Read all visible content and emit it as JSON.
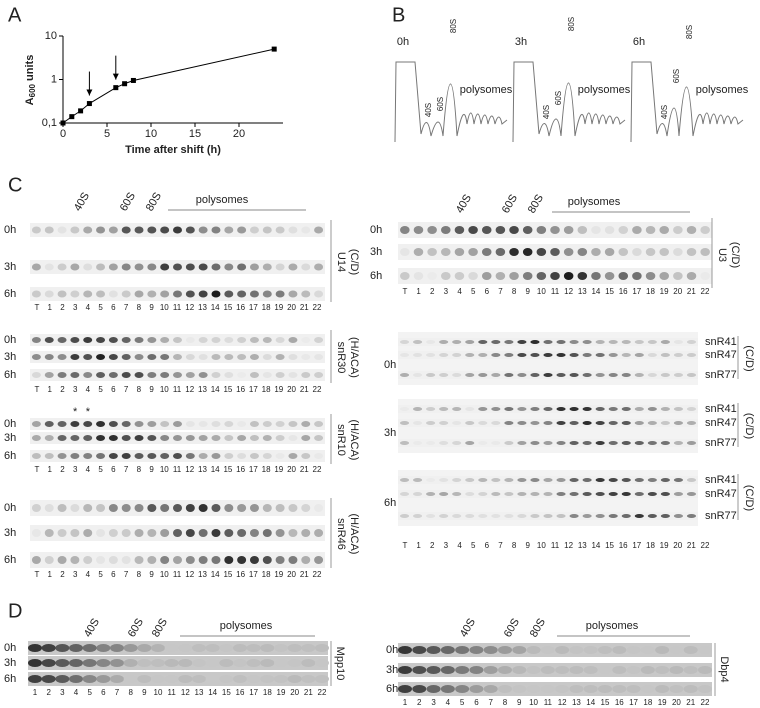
{
  "chart_data": {
    "type": "line",
    "panel_label": "A",
    "x": [
      0,
      1,
      2,
      3,
      6,
      7,
      8,
      24
    ],
    "values": [
      0.1,
      0.14,
      0.19,
      0.28,
      0.65,
      0.8,
      0.95,
      5
    ],
    "xlim": [
      0,
      25
    ],
    "ylim": [
      0.1,
      10
    ],
    "log_y": true,
    "color": "#000000",
    "xticks": [
      0,
      5,
      10,
      15,
      20
    ],
    "yticks": [
      {
        "value": 0.1,
        "label": "0,1"
      },
      1,
      10
    ],
    "xlabel": "Time after shift (h)",
    "ylabel": [
      "A",
      "600",
      " units"
    ],
    "arrows": [
      3,
      6
    ]
  },
  "panel_b": {
    "label": "B",
    "profiles": [
      {
        "time": "0h",
        "peaks": [
          "40S",
          "60S",
          "80S"
        ],
        "polysomes": "polysomes"
      },
      {
        "time": "3h",
        "peaks": [
          "40S",
          "60S",
          "80S"
        ],
        "polysomes": "polysomes"
      },
      {
        "time": "6h",
        "peaks": [
          "40S",
          "60S",
          "80S"
        ],
        "polysomes": "polysomes"
      }
    ]
  },
  "panel_c": {
    "label": "C",
    "times": [
      "0h",
      "3h",
      "6h"
    ],
    "lanes": [
      "T",
      "1",
      "2",
      "3",
      "4",
      "5",
      "6",
      "7",
      "8",
      "9",
      "10",
      "11",
      "12",
      "13",
      "14",
      "15",
      "16",
      "17",
      "18",
      "19",
      "20",
      "21",
      "22"
    ],
    "header": {
      "peaks": [
        "40S",
        "60S",
        "80S"
      ],
      "polysomes": "polysomes"
    },
    "left_blots": [
      {
        "name": "U14",
        "class": "(C/D)"
      },
      {
        "name": "snR30",
        "class": "(H/ACA)"
      },
      {
        "name": "snR10",
        "class": "(H/ACA)",
        "asterisk": "*"
      },
      {
        "name": "snR46",
        "class": "(H/ACA)"
      }
    ],
    "right_blots": [
      {
        "name": "U3",
        "class": "(C/D)"
      },
      {
        "rnas": [
          "snR41",
          "snR47",
          "snR77"
        ],
        "class": "(C/D)"
      }
    ]
  },
  "panel_d": {
    "label": "D",
    "times": [
      "0h",
      "3h",
      "6h"
    ],
    "lanes": [
      "1",
      "2",
      "3",
      "4",
      "5",
      "6",
      "7",
      "8",
      "9",
      "10",
      "11",
      "12",
      "13",
      "14",
      "15",
      "16",
      "17",
      "18",
      "19",
      "20",
      "21",
      "22"
    ],
    "header": {
      "peaks": [
        "40S",
        "60S",
        "80S"
      ],
      "polysomes": "polysomes"
    },
    "blots": [
      "Mpp10",
      "Dbp4"
    ]
  }
}
